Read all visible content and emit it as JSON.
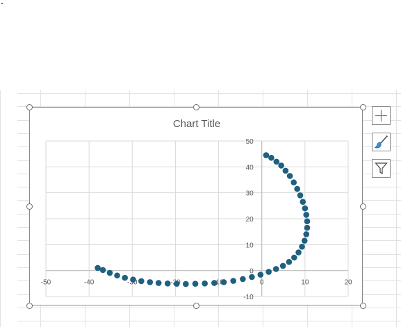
{
  "chart_buttons": {
    "elements": "plus-icon",
    "styles": "brush-icon",
    "filters": "funnel-icon"
  },
  "colors": {
    "series": "#1f5f7f",
    "gridline": "#d9d9d9",
    "axis": "#bfbfbf",
    "title": "#595959",
    "tick": "#595959"
  },
  "chart_data": {
    "type": "scatter",
    "title": "Chart Title",
    "xlabel": "",
    "ylabel": "",
    "xlim": [
      -50,
      20
    ],
    "ylim": [
      -10,
      50
    ],
    "x_ticks": [
      -50,
      -40,
      -30,
      -20,
      -10,
      0,
      10,
      20
    ],
    "y_ticks": [
      -10,
      0,
      10,
      20,
      30,
      40,
      50
    ],
    "grid": true,
    "legend": "none",
    "series": [
      {
        "x": [
          1.0,
          2.2,
          3.4,
          4.5,
          5.5,
          6.5,
          7.4,
          8.2,
          8.9,
          9.5,
          10.0,
          10.3,
          10.5,
          10.5,
          10.3,
          9.9,
          9.3,
          8.5,
          7.5,
          6.3,
          4.9,
          3.3,
          1.6,
          -0.3,
          -2.3,
          -4.4,
          -6.6,
          -8.8,
          -11.0,
          -13.2,
          -15.4,
          -17.6,
          -19.7,
          -21.8,
          -23.9,
          -25.9,
          -27.9,
          -29.8,
          -31.7,
          -33.5,
          -35.2,
          -36.8,
          -38.0
        ],
        "y": [
          44.5,
          43.5,
          42.0,
          40.5,
          38.5,
          36.5,
          34.0,
          31.5,
          29.0,
          26.5,
          24.0,
          21.5,
          19.0,
          16.5,
          14.0,
          11.5,
          9.2,
          7.0,
          5.0,
          3.3,
          1.8,
          0.6,
          -0.5,
          -1.6,
          -2.5,
          -3.3,
          -4.0,
          -4.5,
          -4.8,
          -5.0,
          -5.1,
          -5.2,
          -5.1,
          -5.0,
          -4.8,
          -4.5,
          -4.1,
          -3.5,
          -2.8,
          -1.9,
          -0.9,
          0.2,
          1.0
        ]
      }
    ]
  }
}
